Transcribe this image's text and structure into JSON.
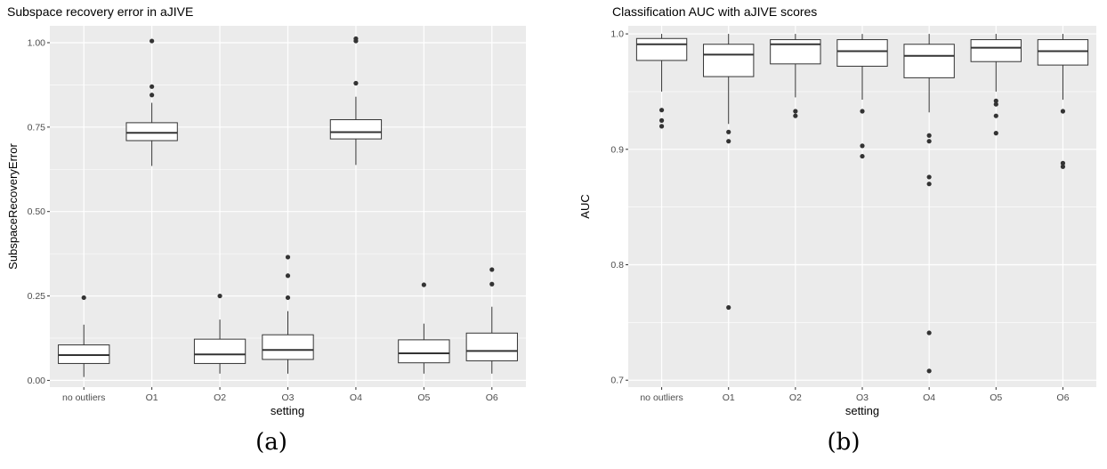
{
  "chart_data": [
    {
      "type": "box",
      "title": "Subspace recovery error in aJIVE",
      "xlabel": "setting",
      "ylabel": "SubspaceRecoveryError",
      "caption": "(a)",
      "categories": [
        "no outliers",
        "O1",
        "O2",
        "O3",
        "O4",
        "O5",
        "O6"
      ],
      "yticks": [
        0.0,
        0.25,
        0.5,
        0.75,
        1.0
      ],
      "ytick_labels": [
        "0.00",
        "0.25",
        "0.50",
        "0.75",
        "1.00"
      ],
      "ylim": [
        -0.02,
        1.05
      ],
      "grid": true,
      "boxes": [
        {
          "q1": 0.05,
          "median": 0.075,
          "q3": 0.105,
          "whisker_low": 0.01,
          "whisker_high": 0.165,
          "outliers": [
            0.245
          ]
        },
        {
          "q1": 0.71,
          "median": 0.733,
          "q3": 0.763,
          "whisker_low": 0.635,
          "whisker_high": 0.822,
          "outliers": [
            0.845,
            0.87,
            1.005
          ]
        },
        {
          "q1": 0.05,
          "median": 0.077,
          "q3": 0.122,
          "whisker_low": 0.02,
          "whisker_high": 0.18,
          "outliers": [
            0.25
          ]
        },
        {
          "q1": 0.062,
          "median": 0.09,
          "q3": 0.135,
          "whisker_low": 0.02,
          "whisker_high": 0.205,
          "outliers": [
            0.245,
            0.31,
            0.365
          ]
        },
        {
          "q1": 0.715,
          "median": 0.735,
          "q3": 0.772,
          "whisker_low": 0.638,
          "whisker_high": 0.84,
          "outliers": [
            0.88,
            1.005,
            1.012
          ]
        },
        {
          "q1": 0.052,
          "median": 0.08,
          "q3": 0.12,
          "whisker_low": 0.02,
          "whisker_high": 0.168,
          "outliers": [
            0.283
          ]
        },
        {
          "q1": 0.058,
          "median": 0.087,
          "q3": 0.14,
          "whisker_low": 0.02,
          "whisker_high": 0.218,
          "outliers": [
            0.285,
            0.328
          ]
        }
      ]
    },
    {
      "type": "box",
      "title": "Classification AUC with aJIVE scores",
      "xlabel": "setting",
      "ylabel": "AUC",
      "caption": "(b)",
      "categories": [
        "no outliers",
        "O1",
        "O2",
        "O3",
        "O4",
        "O5",
        "O6"
      ],
      "yticks": [
        0.7,
        0.8,
        0.9,
        1.0
      ],
      "ytick_labels": [
        "0.7",
        "0.8",
        "0.9",
        "1.0"
      ],
      "ylim": [
        0.694,
        1.007
      ],
      "grid": true,
      "boxes": [
        {
          "q1": 0.977,
          "median": 0.991,
          "q3": 0.996,
          "whisker_low": 0.95,
          "whisker_high": 1.0,
          "outliers": [
            0.934,
            0.925,
            0.92
          ]
        },
        {
          "q1": 0.963,
          "median": 0.982,
          "q3": 0.991,
          "whisker_low": 0.922,
          "whisker_high": 1.0,
          "outliers": [
            0.915,
            0.907,
            0.763
          ]
        },
        {
          "q1": 0.974,
          "median": 0.991,
          "q3": 0.995,
          "whisker_low": 0.945,
          "whisker_high": 1.0,
          "outliers": [
            0.933,
            0.929
          ]
        },
        {
          "q1": 0.972,
          "median": 0.985,
          "q3": 0.995,
          "whisker_low": 0.943,
          "whisker_high": 1.0,
          "outliers": [
            0.933,
            0.903,
            0.894
          ]
        },
        {
          "q1": 0.962,
          "median": 0.981,
          "q3": 0.991,
          "whisker_low": 0.932,
          "whisker_high": 1.0,
          "outliers": [
            0.912,
            0.907,
            0.876,
            0.87,
            0.741,
            0.708
          ]
        },
        {
          "q1": 0.976,
          "median": 0.988,
          "q3": 0.995,
          "whisker_low": 0.95,
          "whisker_high": 1.0,
          "outliers": [
            0.942,
            0.939,
            0.929,
            0.914
          ]
        },
        {
          "q1": 0.973,
          "median": 0.985,
          "q3": 0.995,
          "whisker_low": 0.943,
          "whisker_high": 1.0,
          "outliers": [
            0.933,
            0.888,
            0.885
          ]
        }
      ]
    }
  ]
}
